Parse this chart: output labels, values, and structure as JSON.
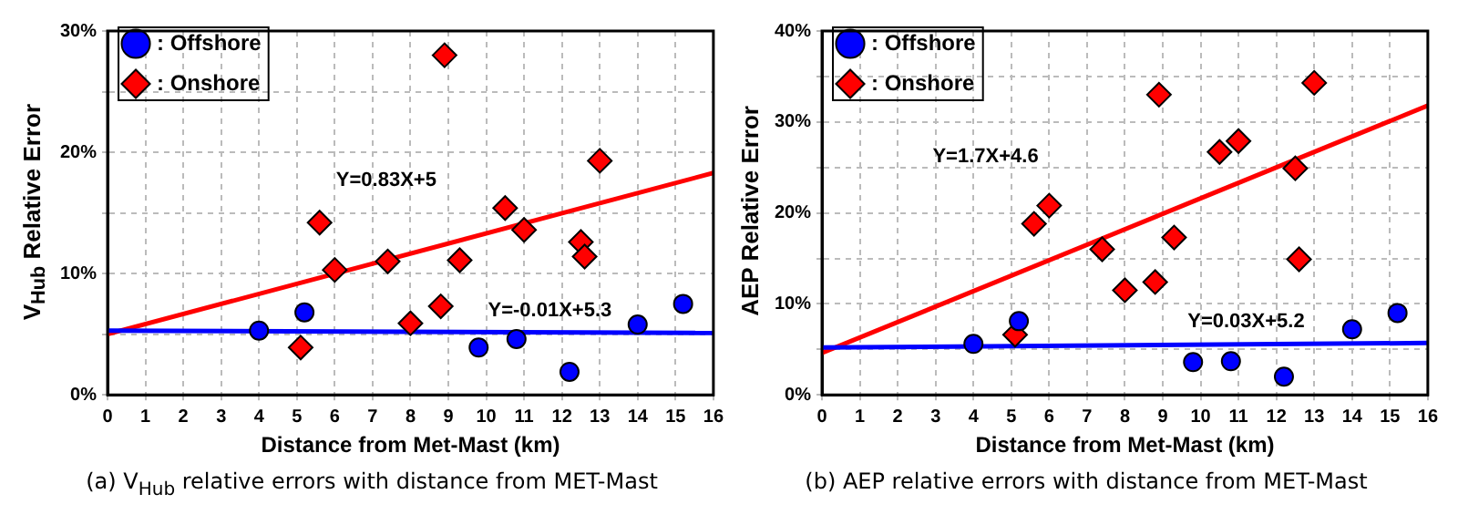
{
  "chart_data": [
    {
      "type": "scatter",
      "title": "(a) V$_{Hub}$ relative errors with distance from MET-Mast",
      "xlabel": "Distance from Met-Mast (km)",
      "ylabel": "V$_{Hub}$ Relative Error",
      "xlim": [
        0,
        16
      ],
      "xticks": [
        0,
        1,
        2,
        3,
        4,
        5,
        6,
        7,
        8,
        9,
        10,
        11,
        12,
        13,
        14,
        15,
        16
      ],
      "ylim": [
        0,
        30
      ],
      "yticks": [
        {
          "value": 0,
          "label": "0%"
        },
        {
          "value": 5,
          "label": null
        },
        {
          "value": 10,
          "label": "10%"
        },
        {
          "value": 15,
          "label": null
        },
        {
          "value": 20,
          "label": "20%"
        },
        {
          "value": 25,
          "label": null
        },
        {
          "value": 30,
          "label": "30%"
        }
      ],
      "grid": true,
      "legend": "top left",
      "series": [
        {
          "name": ": Offshore",
          "marker": "circle",
          "color": "#0000ff",
          "x": [
            4,
            5.2,
            9.8,
            10.8,
            12.2,
            14,
            15.2
          ],
          "values": [
            5.3,
            6.8,
            3.9,
            4.6,
            1.9,
            5.8,
            7.5
          ]
        },
        {
          "name": ": Onshore",
          "marker": "diamond",
          "color": "#ff0000",
          "x": [
            5.1,
            5.6,
            6,
            7.4,
            8,
            8.8,
            8.9,
            9.3,
            10.5,
            11,
            12.5,
            12.6,
            13
          ],
          "values": [
            3.9,
            14.2,
            10.3,
            11.0,
            5.9,
            7.3,
            28.0,
            11.1,
            15.4,
            13.6,
            12.6,
            11.4,
            19.3
          ]
        },
        {
          "type": "line",
          "color": "#0000ff",
          "x": [
            0,
            16
          ],
          "values": [
            5.3,
            5.1
          ]
        },
        {
          "type": "line",
          "color": "#ff0000",
          "x": [
            0,
            16
          ],
          "values": [
            5,
            18.3
          ]
        }
      ],
      "annotations": [
        "Y=0.83X+5",
        "Y=-0.01X+5.3"
      ]
    },
    {
      "type": "scatter",
      "title": "(b) AEP relative errors with distance from MET-Mast",
      "xlabel": "Distance from Met-Mast (km)",
      "ylabel": "AEP Relative Error",
      "xlim": [
        0,
        16
      ],
      "xticks": [
        0,
        1,
        2,
        3,
        4,
        5,
        6,
        7,
        8,
        9,
        10,
        11,
        12,
        13,
        14,
        15,
        16
      ],
      "ylim": [
        0,
        40
      ],
      "yticks": [
        {
          "value": 0,
          "label": "0%"
        },
        {
          "value": 5,
          "label": null
        },
        {
          "value": 10,
          "label": "10%"
        },
        {
          "value": 15,
          "label": null
        },
        {
          "value": 20,
          "label": "20%"
        },
        {
          "value": 25,
          "label": null
        },
        {
          "value": 30,
          "label": "30%"
        },
        {
          "value": 35,
          "label": null
        },
        {
          "value": 40,
          "label": "40%"
        }
      ],
      "grid": true,
      "legend": "top left",
      "series": [
        {
          "name": ": Offshore",
          "marker": "circle",
          "color": "#0000ff",
          "x": [
            4,
            5.2,
            9.8,
            10.8,
            12.2,
            14,
            15.2
          ],
          "values": [
            5.6,
            8.1,
            3.6,
            3.7,
            2.0,
            7.2,
            9.0
          ]
        },
        {
          "name": ": Onshore",
          "marker": "diamond",
          "color": "#ff0000",
          "x": [
            5.1,
            5.6,
            6,
            7.4,
            8,
            8.8,
            8.9,
            9.3,
            10.5,
            11,
            12.5,
            12.6,
            13
          ],
          "values": [
            6.6,
            18.8,
            20.8,
            16.0,
            11.5,
            12.4,
            33.0,
            17.3,
            26.7,
            27.9,
            24.9,
            14.9,
            34.3
          ]
        },
        {
          "type": "line",
          "color": "#0000ff",
          "x": [
            0,
            16
          ],
          "values": [
            5.2,
            5.7
          ]
        },
        {
          "type": "line",
          "color": "#ff0000",
          "x": [
            0,
            16
          ],
          "values": [
            4.6,
            31.8
          ]
        }
      ],
      "annotations": [
        "Y=1.7X+4.6",
        "Y=0.03X+5.2"
      ]
    }
  ]
}
